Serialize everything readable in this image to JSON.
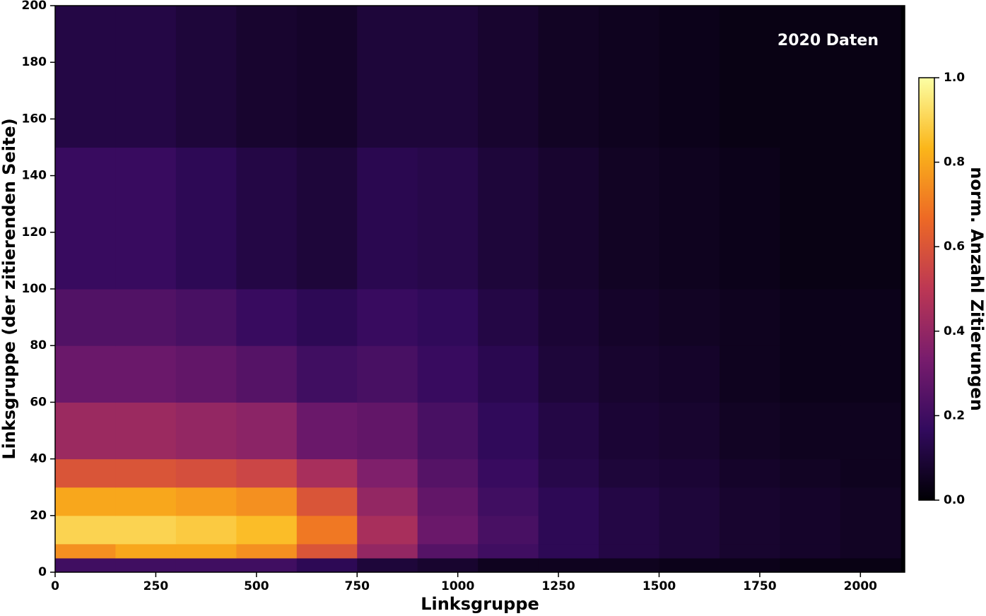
{
  "chart_data": {
    "type": "heatmap",
    "xlabel": "Linksgruppe",
    "ylabel": "Linksgruppe (der zitierenden Seite)",
    "annotation": "2020 Daten",
    "colorbar_label": "norm. Anzahl Zitierungen",
    "x_bins": [
      0,
      150,
      300,
      450,
      600,
      750,
      900,
      1050,
      1200,
      1350,
      1500,
      1650,
      1800,
      1950,
      2100
    ],
    "y_bins": [
      0,
      5,
      10,
      20,
      30,
      40,
      60,
      80,
      100,
      150,
      200
    ],
    "z": [
      [
        0.2,
        0.2,
        0.2,
        0.2,
        0.15,
        0.1,
        0.08,
        0.05,
        0.05,
        0.05,
        0.04,
        0.04,
        0.03,
        0.03
      ],
      [
        0.75,
        0.8,
        0.8,
        0.75,
        0.6,
        0.4,
        0.25,
        0.2,
        0.15,
        0.12,
        0.1,
        0.08,
        0.07,
        0.06
      ],
      [
        0.9,
        0.9,
        0.88,
        0.85,
        0.7,
        0.45,
        0.3,
        0.22,
        0.15,
        0.12,
        0.1,
        0.08,
        0.07,
        0.06
      ],
      [
        0.8,
        0.8,
        0.78,
        0.75,
        0.6,
        0.4,
        0.28,
        0.2,
        0.15,
        0.12,
        0.1,
        0.08,
        0.07,
        0.06
      ],
      [
        0.6,
        0.6,
        0.58,
        0.55,
        0.45,
        0.35,
        0.25,
        0.18,
        0.13,
        0.1,
        0.09,
        0.07,
        0.06,
        0.05
      ],
      [
        0.42,
        0.42,
        0.4,
        0.38,
        0.3,
        0.28,
        0.22,
        0.16,
        0.12,
        0.09,
        0.08,
        0.06,
        0.05,
        0.05
      ],
      [
        0.3,
        0.3,
        0.28,
        0.25,
        0.2,
        0.22,
        0.18,
        0.14,
        0.1,
        0.08,
        0.07,
        0.05,
        0.04,
        0.04
      ],
      [
        0.24,
        0.24,
        0.22,
        0.18,
        0.15,
        0.18,
        0.16,
        0.12,
        0.09,
        0.07,
        0.06,
        0.05,
        0.04,
        0.04
      ],
      [
        0.18,
        0.18,
        0.15,
        0.12,
        0.1,
        0.14,
        0.13,
        0.1,
        0.08,
        0.06,
        0.05,
        0.04,
        0.03,
        0.03
      ],
      [
        0.12,
        0.12,
        0.1,
        0.08,
        0.07,
        0.1,
        0.1,
        0.08,
        0.06,
        0.05,
        0.04,
        0.03,
        0.03,
        0.03
      ]
    ],
    "xlim": [
      0,
      2110
    ],
    "xticks": [
      0,
      250,
      500,
      750,
      1000,
      1250,
      1500,
      1750,
      2000
    ],
    "ylim": [
      0,
      200
    ],
    "yticks": [
      0,
      20,
      40,
      60,
      80,
      100,
      120,
      140,
      160,
      180,
      200
    ],
    "clim": [
      0,
      1
    ],
    "cticks": [
      {
        "value": 0,
        "label": "0.0"
      },
      {
        "value": 0.2,
        "label": "0.2"
      },
      {
        "value": 0.4,
        "label": "0.4"
      },
      {
        "value": 0.6,
        "label": "0.6"
      },
      {
        "value": 0.8,
        "label": "0.8"
      },
      {
        "value": 1,
        "label": "1.0"
      }
    ],
    "colormap": [
      "#000004",
      "#320a5e",
      "#781c6d",
      "#bc3754",
      "#ed6925",
      "#fbb61a",
      "#fcffa4"
    ]
  }
}
